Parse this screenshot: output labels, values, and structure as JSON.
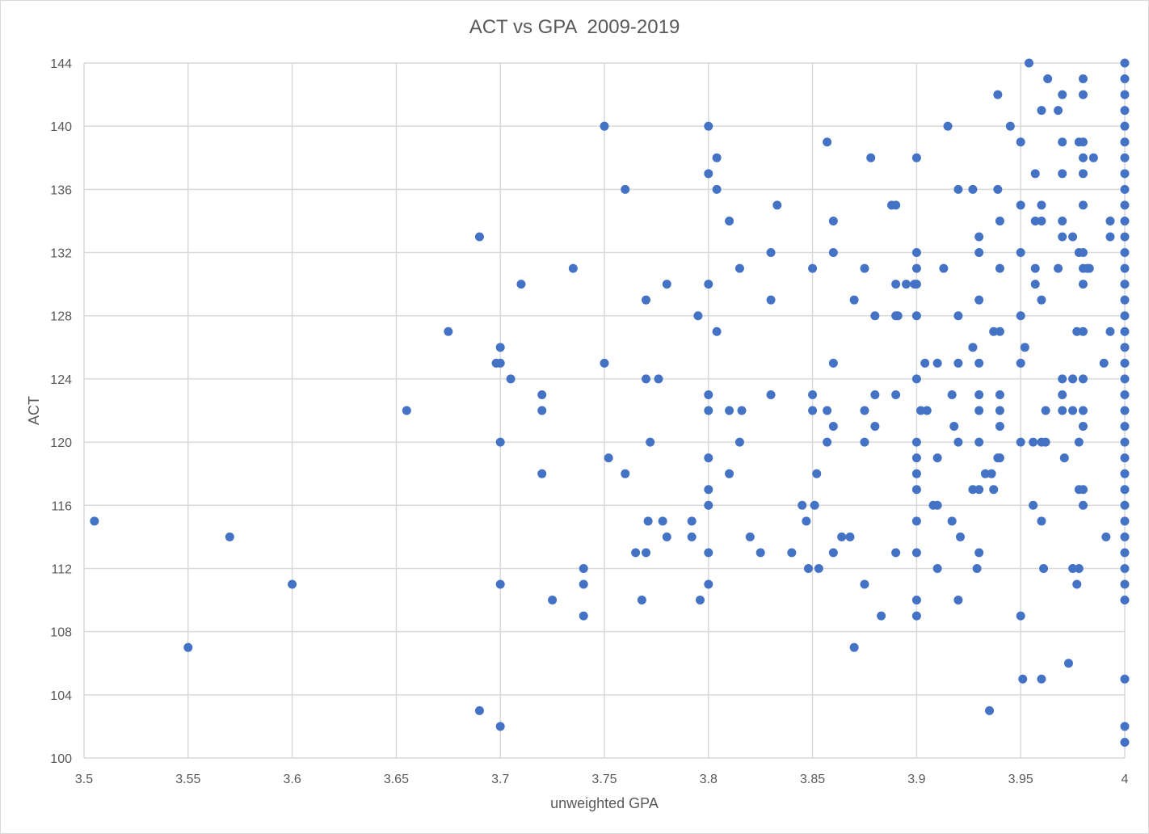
{
  "chart_data": {
    "type": "scatter",
    "title": "ACT vs GPA  2009-2019",
    "xlabel": "unweighted GPA",
    "ylabel": "ACT",
    "xlim": [
      3.5,
      4.0
    ],
    "ylim": [
      100,
      144
    ],
    "x_ticks": [
      "3.5",
      "3.55",
      "3.6",
      "3.65",
      "3.7",
      "3.75",
      "3.8",
      "3.85",
      "3.9",
      "3.95",
      "4"
    ],
    "y_ticks": [
      "100",
      "104",
      "108",
      "112",
      "116",
      "120",
      "124",
      "128",
      "132",
      "136",
      "140",
      "144"
    ],
    "grid": true,
    "marker_color": "#4472C4",
    "points": [
      [
        3.505,
        115
      ],
      [
        3.55,
        107
      ],
      [
        3.57,
        114
      ],
      [
        3.6,
        111
      ],
      [
        3.655,
        122
      ],
      [
        3.675,
        127
      ],
      [
        3.69,
        133
      ],
      [
        3.69,
        103
      ],
      [
        3.698,
        125
      ],
      [
        3.7,
        126
      ],
      [
        3.7,
        125
      ],
      [
        3.7,
        120
      ],
      [
        3.7,
        111
      ],
      [
        3.7,
        102
      ],
      [
        3.705,
        124
      ],
      [
        3.71,
        130
      ],
      [
        3.72,
        123
      ],
      [
        3.72,
        122
      ],
      [
        3.72,
        118
      ],
      [
        3.725,
        110
      ],
      [
        3.735,
        131
      ],
      [
        3.74,
        112
      ],
      [
        3.74,
        111
      ],
      [
        3.74,
        109
      ],
      [
        3.75,
        140
      ],
      [
        3.75,
        125
      ],
      [
        3.752,
        119
      ],
      [
        3.76,
        136
      ],
      [
        3.76,
        118
      ],
      [
        3.765,
        113
      ],
      [
        3.768,
        110
      ],
      [
        3.77,
        129
      ],
      [
        3.77,
        124
      ],
      [
        3.77,
        113
      ],
      [
        3.771,
        115
      ],
      [
        3.772,
        120
      ],
      [
        3.776,
        124
      ],
      [
        3.778,
        115
      ],
      [
        3.78,
        130
      ],
      [
        3.78,
        114
      ],
      [
        3.792,
        115
      ],
      [
        3.792,
        114
      ],
      [
        3.795,
        128
      ],
      [
        3.796,
        110
      ],
      [
        3.8,
        140
      ],
      [
        3.8,
        137
      ],
      [
        3.8,
        130
      ],
      [
        3.8,
        123
      ],
      [
        3.8,
        122
      ],
      [
        3.8,
        119
      ],
      [
        3.8,
        117
      ],
      [
        3.8,
        116
      ],
      [
        3.8,
        113
      ],
      [
        3.8,
        111
      ],
      [
        3.804,
        138
      ],
      [
        3.804,
        136
      ],
      [
        3.804,
        127
      ],
      [
        3.81,
        134
      ],
      [
        3.81,
        122
      ],
      [
        3.81,
        118
      ],
      [
        3.815,
        131
      ],
      [
        3.815,
        120
      ],
      [
        3.816,
        122
      ],
      [
        3.82,
        114
      ],
      [
        3.825,
        113
      ],
      [
        3.83,
        132
      ],
      [
        3.83,
        129
      ],
      [
        3.83,
        123
      ],
      [
        3.833,
        135
      ],
      [
        3.84,
        113
      ],
      [
        3.845,
        116
      ],
      [
        3.847,
        115
      ],
      [
        3.848,
        112
      ],
      [
        3.85,
        131
      ],
      [
        3.85,
        123
      ],
      [
        3.85,
        122
      ],
      [
        3.851,
        116
      ],
      [
        3.852,
        118
      ],
      [
        3.853,
        112
      ],
      [
        3.857,
        139
      ],
      [
        3.857,
        122
      ],
      [
        3.857,
        120
      ],
      [
        3.86,
        134
      ],
      [
        3.86,
        132
      ],
      [
        3.86,
        125
      ],
      [
        3.86,
        121
      ],
      [
        3.86,
        113
      ],
      [
        3.864,
        114
      ],
      [
        3.868,
        114
      ],
      [
        3.87,
        129
      ],
      [
        3.87,
        107
      ],
      [
        3.875,
        131
      ],
      [
        3.875,
        122
      ],
      [
        3.875,
        120
      ],
      [
        3.875,
        111
      ],
      [
        3.878,
        138
      ],
      [
        3.88,
        128
      ],
      [
        3.88,
        123
      ],
      [
        3.88,
        121
      ],
      [
        3.883,
        109
      ],
      [
        3.888,
        135
      ],
      [
        3.89,
        135
      ],
      [
        3.89,
        130
      ],
      [
        3.89,
        128
      ],
      [
        3.891,
        128
      ],
      [
        3.89,
        123
      ],
      [
        3.89,
        113
      ],
      [
        3.895,
        130
      ],
      [
        3.899,
        130
      ],
      [
        3.9,
        138
      ],
      [
        3.9,
        132
      ],
      [
        3.9,
        131
      ],
      [
        3.9,
        130
      ],
      [
        3.9,
        128
      ],
      [
        3.9,
        124
      ],
      [
        3.9,
        120
      ],
      [
        3.9,
        119
      ],
      [
        3.9,
        118
      ],
      [
        3.9,
        117
      ],
      [
        3.9,
        115
      ],
      [
        3.9,
        113
      ],
      [
        3.9,
        110
      ],
      [
        3.9,
        109
      ],
      [
        3.902,
        122
      ],
      [
        3.904,
        125
      ],
      [
        3.905,
        122
      ],
      [
        3.908,
        116
      ],
      [
        3.91,
        125
      ],
      [
        3.91,
        119
      ],
      [
        3.91,
        116
      ],
      [
        3.91,
        112
      ],
      [
        3.913,
        131
      ],
      [
        3.915,
        140
      ],
      [
        3.917,
        123
      ],
      [
        3.917,
        115
      ],
      [
        3.918,
        121
      ],
      [
        3.92,
        136
      ],
      [
        3.92,
        128
      ],
      [
        3.92,
        125
      ],
      [
        3.92,
        120
      ],
      [
        3.92,
        110
      ],
      [
        3.921,
        114
      ],
      [
        3.927,
        136
      ],
      [
        3.927,
        126
      ],
      [
        3.927,
        117
      ],
      [
        3.929,
        112
      ],
      [
        3.93,
        133
      ],
      [
        3.93,
        132
      ],
      [
        3.93,
        129
      ],
      [
        3.93,
        125
      ],
      [
        3.93,
        123
      ],
      [
        3.93,
        122
      ],
      [
        3.93,
        120
      ],
      [
        3.93,
        117
      ],
      [
        3.93,
        113
      ],
      [
        3.933,
        118
      ],
      [
        3.935,
        103
      ],
      [
        3.936,
        118
      ],
      [
        3.937,
        127
      ],
      [
        3.937,
        117
      ],
      [
        3.939,
        142
      ],
      [
        3.939,
        136
      ],
      [
        3.939,
        119
      ],
      [
        3.94,
        134
      ],
      [
        3.94,
        131
      ],
      [
        3.94,
        127
      ],
      [
        3.94,
        123
      ],
      [
        3.94,
        122
      ],
      [
        3.94,
        121
      ],
      [
        3.94,
        119
      ],
      [
        3.945,
        140
      ],
      [
        3.95,
        139
      ],
      [
        3.95,
        135
      ],
      [
        3.95,
        132
      ],
      [
        3.95,
        128
      ],
      [
        3.95,
        125
      ],
      [
        3.95,
        120
      ],
      [
        3.95,
        109
      ],
      [
        3.951,
        105
      ],
      [
        3.952,
        126
      ],
      [
        3.954,
        144
      ],
      [
        3.956,
        120
      ],
      [
        3.956,
        116
      ],
      [
        3.957,
        137
      ],
      [
        3.957,
        134
      ],
      [
        3.957,
        131
      ],
      [
        3.957,
        130
      ],
      [
        3.96,
        141
      ],
      [
        3.96,
        135
      ],
      [
        3.96,
        134
      ],
      [
        3.96,
        129
      ],
      [
        3.96,
        120
      ],
      [
        3.96,
        115
      ],
      [
        3.96,
        105
      ],
      [
        3.961,
        112
      ],
      [
        3.962,
        122
      ],
      [
        3.962,
        120
      ],
      [
        3.963,
        143
      ],
      [
        3.968,
        141
      ],
      [
        3.968,
        131
      ],
      [
        3.97,
        142
      ],
      [
        3.97,
        139
      ],
      [
        3.97,
        137
      ],
      [
        3.97,
        134
      ],
      [
        3.97,
        133
      ],
      [
        3.97,
        124
      ],
      [
        3.97,
        123
      ],
      [
        3.97,
        122
      ],
      [
        3.971,
        119
      ],
      [
        3.973,
        106
      ],
      [
        3.975,
        133
      ],
      [
        3.975,
        124
      ],
      [
        3.975,
        122
      ],
      [
        3.975,
        112
      ],
      [
        3.977,
        127
      ],
      [
        3.977,
        111
      ],
      [
        3.978,
        139
      ],
      [
        3.978,
        132
      ],
      [
        3.978,
        120
      ],
      [
        3.978,
        117
      ],
      [
        3.978,
        112
      ],
      [
        3.98,
        143
      ],
      [
        3.98,
        142
      ],
      [
        3.98,
        139
      ],
      [
        3.98,
        138
      ],
      [
        3.98,
        137
      ],
      [
        3.98,
        135
      ],
      [
        3.98,
        132
      ],
      [
        3.98,
        131
      ],
      [
        3.98,
        130
      ],
      [
        3.98,
        127
      ],
      [
        3.98,
        124
      ],
      [
        3.98,
        122
      ],
      [
        3.98,
        121
      ],
      [
        3.98,
        117
      ],
      [
        3.98,
        116
      ],
      [
        3.982,
        131
      ],
      [
        3.983,
        131
      ],
      [
        3.985,
        138
      ],
      [
        3.99,
        125
      ],
      [
        3.991,
        114
      ],
      [
        3.993,
        134
      ],
      [
        3.993,
        133
      ],
      [
        3.993,
        127
      ],
      [
        4,
        144
      ],
      [
        4,
        143
      ],
      [
        4,
        142
      ],
      [
        4,
        141
      ],
      [
        4,
        140
      ],
      [
        4,
        139
      ],
      [
        4,
        138
      ],
      [
        4,
        137
      ],
      [
        4,
        136
      ],
      [
        4,
        135
      ],
      [
        4,
        134
      ],
      [
        4,
        133
      ],
      [
        4,
        132
      ],
      [
        4,
        131
      ],
      [
        4,
        130
      ],
      [
        4,
        129
      ],
      [
        4,
        128
      ],
      [
        4,
        127
      ],
      [
        4,
        126
      ],
      [
        4,
        125
      ],
      [
        4,
        124
      ],
      [
        4,
        123
      ],
      [
        4,
        122
      ],
      [
        4,
        121
      ],
      [
        4,
        120
      ],
      [
        4,
        119
      ],
      [
        4,
        118
      ],
      [
        4,
        117
      ],
      [
        4,
        116
      ],
      [
        4,
        115
      ],
      [
        4,
        114
      ],
      [
        4,
        113
      ],
      [
        4,
        112
      ],
      [
        4,
        111
      ],
      [
        4,
        110
      ],
      [
        4,
        105
      ],
      [
        4,
        102
      ],
      [
        4,
        101
      ]
    ]
  }
}
